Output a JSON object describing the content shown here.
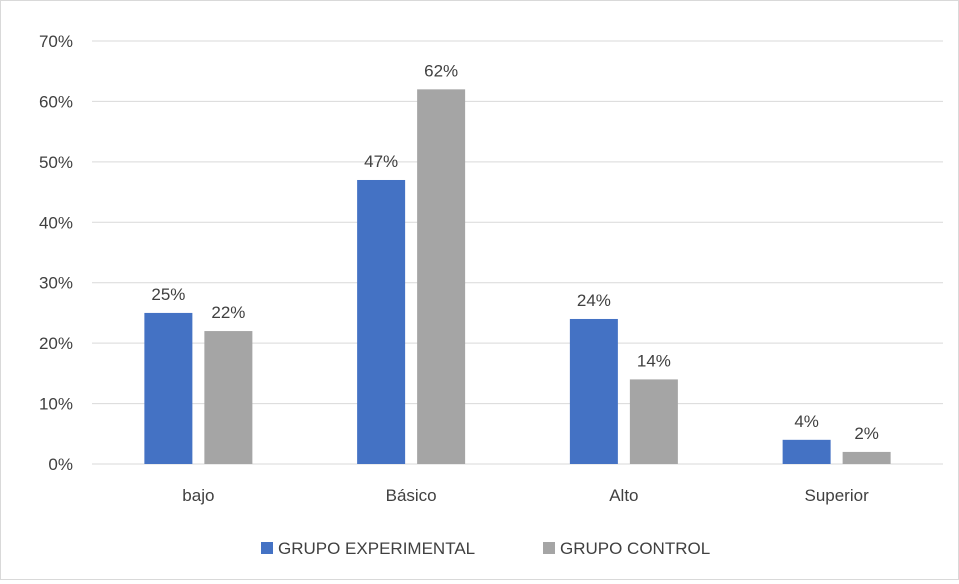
{
  "chart_data": {
    "type": "bar",
    "categories": [
      "bajo",
      "Básico",
      "Alto",
      "Superior"
    ],
    "series": [
      {
        "name": "GRUPO EXPERIMENTAL",
        "values": [
          25,
          47,
          24,
          4
        ],
        "labels": [
          "25%",
          "47%",
          "24%",
          "4%"
        ],
        "color": "#4472c4"
      },
      {
        "name": "GRUPO CONTROL",
        "values": [
          22,
          62,
          14,
          2
        ],
        "labels": [
          "22%",
          "62%",
          "14%",
          "2%"
        ],
        "color": "#a5a5a5"
      }
    ],
    "y_ticks": [
      "0%",
      "10%",
      "20%",
      "30%",
      "40%",
      "50%",
      "60%",
      "70%"
    ],
    "ylim": [
      0,
      70
    ],
    "grid": true,
    "legend_position": "bottom",
    "gridline_color": "#d9d9d9"
  }
}
